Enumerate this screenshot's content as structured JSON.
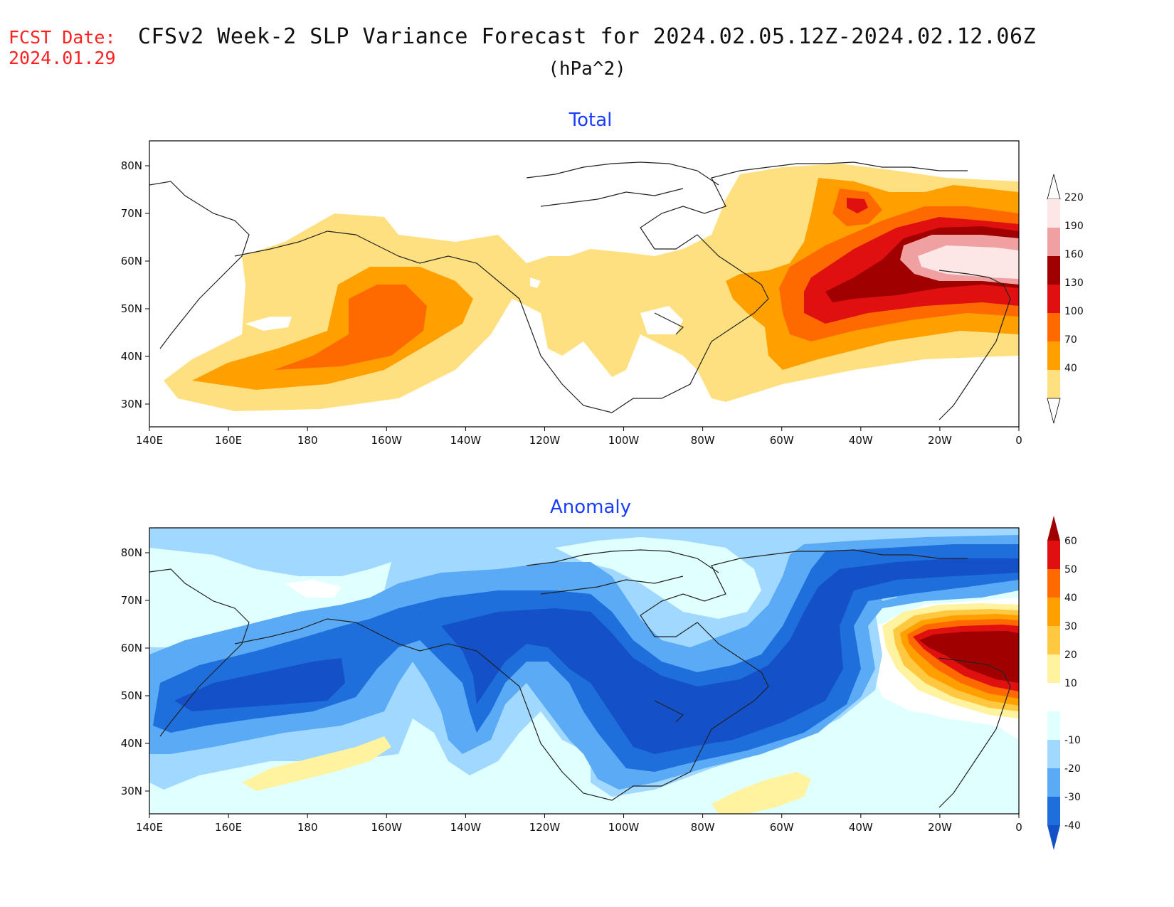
{
  "header": {
    "fcst_label": "FCST Date:",
    "fcst_date": "2024.01.29",
    "title": "CFSv2 Week-2 SLP Variance Forecast for 2024.02.05.12Z-2024.02.12.06Z",
    "units": "(hPa^2)"
  },
  "map": {
    "lon_ticks": [
      "140E",
      "160E",
      "180",
      "160W",
      "140W",
      "120W",
      "100W",
      "80W",
      "60W",
      "40W",
      "20W",
      "0"
    ],
    "lat_ticks": [
      "80N",
      "70N",
      "60N",
      "50N",
      "40N",
      "30N"
    ]
  },
  "panels": [
    {
      "title": "Total",
      "colorbar": {
        "labels": [
          "220",
          "190",
          "160",
          "130",
          "100",
          "70",
          "40"
        ],
        "colors": [
          "#fce6e6",
          "#f0a0a0",
          "#a00000",
          "#e01010",
          "#ff6a00",
          "#ffa000",
          "#ffe080"
        ]
      }
    },
    {
      "title": "Anomaly",
      "colorbar": {
        "labels": [
          "60",
          "50",
          "40",
          "30",
          "20",
          "10",
          "-10",
          "-20",
          "-30",
          "-40"
        ],
        "colors": [
          "#a00000",
          "#e01010",
          "#ff6a00",
          "#ffa000",
          "#ffc840",
          "#fff3a0",
          "#ffffff",
          "#e0ffff",
          "#a0d8ff",
          "#5aaaf5",
          "#1e6edc",
          "#1450c8"
        ]
      }
    }
  ]
}
